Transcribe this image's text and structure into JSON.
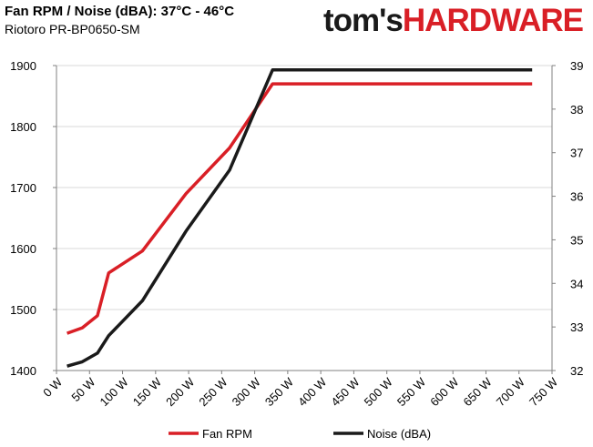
{
  "header": {
    "title": "Fan RPM / Noise (dBA): 37°C - 46°C",
    "subtitle": "Riotoro PR-BP0650-SM"
  },
  "logo": {
    "part1": "tom's",
    "part2": "HARDWARE"
  },
  "colors": {
    "fan_rpm": "#d91f26",
    "noise": "#1a1a1a",
    "grid": "#d9d9d9",
    "axis": "#808080"
  },
  "chart_data": {
    "type": "line",
    "xlabel": "",
    "ylabel": "",
    "x": [
      "0 W",
      "50 W",
      "100 W",
      "150 W",
      "200 W",
      "250 W",
      "300 W",
      "350 W",
      "400 W",
      "450 W",
      "500 W",
      "550 W",
      "600 W",
      "650 W",
      "700 W",
      "750 W"
    ],
    "xlim": [
      0,
      750
    ],
    "ylim": [
      1400,
      1900
    ],
    "y2lim": [
      32,
      39
    ],
    "yticks": [
      1400,
      1500,
      1600,
      1700,
      1800,
      1900
    ],
    "y2ticks": [
      32,
      33,
      34,
      35,
      36,
      37,
      38,
      39
    ],
    "grid": "horizontal",
    "legend_position": "bottom",
    "series": [
      {
        "name": "Fan RPM",
        "axis": "left",
        "points": [
          [
            16,
            1461
          ],
          [
            39,
            1470
          ],
          [
            62,
            1490
          ],
          [
            79,
            1560
          ],
          [
            130,
            1596
          ],
          [
            196,
            1690
          ],
          [
            262,
            1765
          ],
          [
            327,
            1870
          ],
          [
            720,
            1870
          ]
        ]
      },
      {
        "name": "Noise (dBA)",
        "axis": "right",
        "points": [
          [
            16,
            32.1
          ],
          [
            39,
            32.2
          ],
          [
            62,
            32.4
          ],
          [
            79,
            32.8
          ],
          [
            130,
            33.6
          ],
          [
            196,
            35.2
          ],
          [
            262,
            36.6
          ],
          [
            327,
            38.9
          ],
          [
            720,
            38.9
          ]
        ]
      }
    ]
  }
}
